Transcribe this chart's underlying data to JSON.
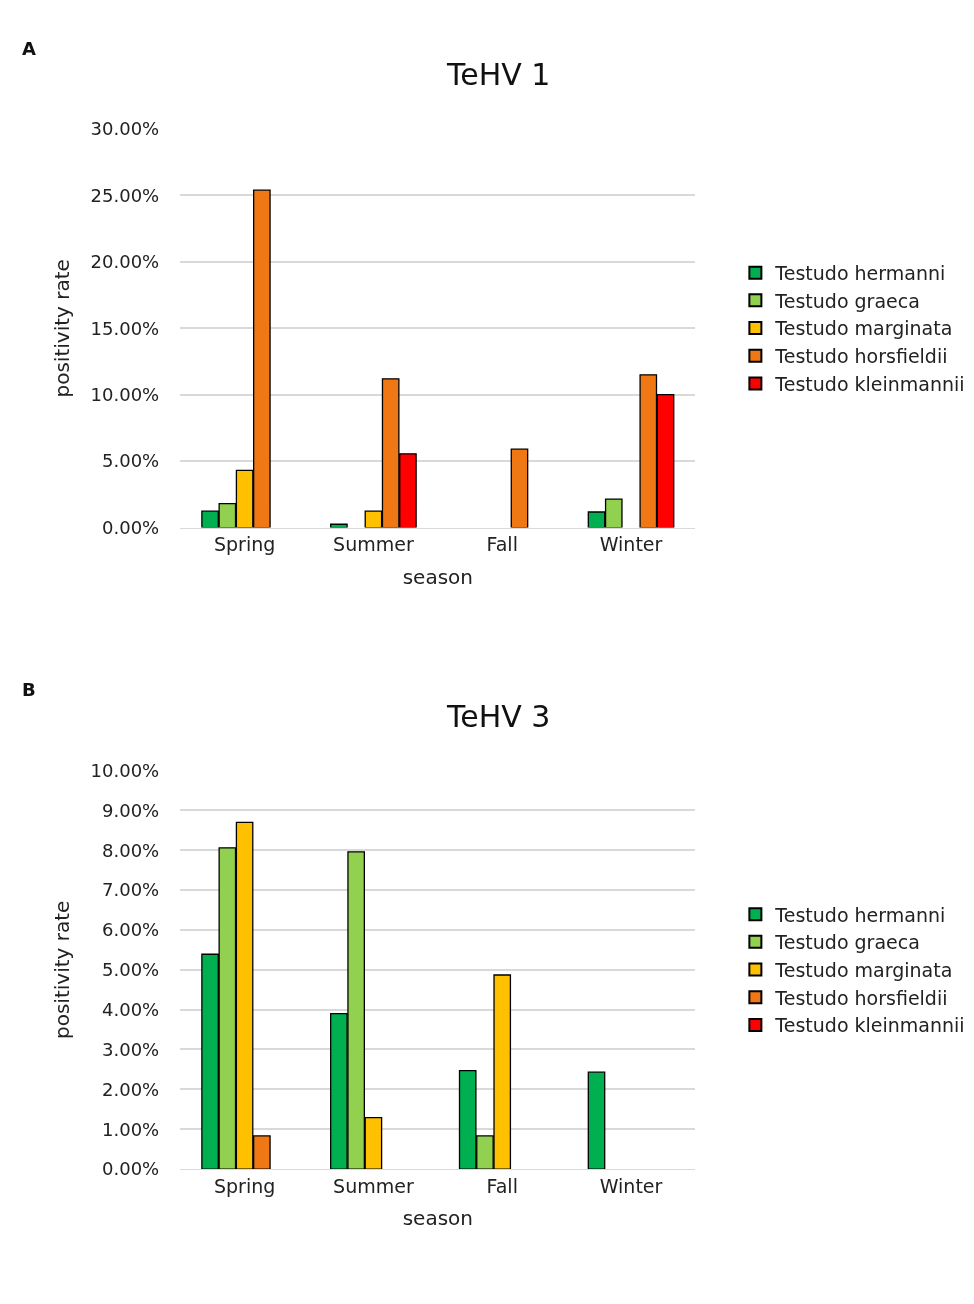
{
  "chart_data": [
    {
      "type": "bar",
      "title": "TeHV 1",
      "xlabel": "season",
      "ylabel": "positivity rate",
      "annotations": [
        "A"
      ],
      "categories": [
        "Spring",
        "Summer",
        "Fall",
        "Winter"
      ],
      "series": [
        {
          "name": "Testudo hermanni",
          "color": "#00b050",
          "values": [
            1.23,
            0.25,
            null,
            1.17
          ]
        },
        {
          "name": "Testudo graeca",
          "color": "#92d050",
          "values": [
            1.8,
            null,
            null,
            2.14
          ]
        },
        {
          "name": "Testudo marginata",
          "color": "#ffc000",
          "values": [
            4.3,
            1.23,
            null,
            null
          ]
        },
        {
          "name": "Testudo horsfieldii",
          "color": "#f07814",
          "values": [
            25.4,
            11.2,
            5.9,
            11.5
          ]
        },
        {
          "name": "Testudo kleinmannii",
          "color": "#ff0000",
          "values": [
            null,
            5.55,
            null,
            10.0
          ]
        }
      ],
      "ylim": [
        0,
        30
      ],
      "yticks": [
        {
          "value": 0,
          "label": "0.00%"
        },
        {
          "value": 5,
          "label": "5.00%"
        },
        {
          "value": 10,
          "label": "10.00%"
        },
        {
          "value": 15,
          "label": "15.00%"
        },
        {
          "value": 20,
          "label": "20.00%"
        },
        {
          "value": 25,
          "label": "25.00%"
        },
        {
          "value": 30,
          "label": "30.00%"
        }
      ],
      "grid": "y",
      "legend": "right"
    },
    {
      "type": "bar",
      "title": "TeHV 3",
      "xlabel": "season",
      "ylabel": "positivity rate",
      "annotations": [
        "B"
      ],
      "categories": [
        "Spring",
        "Summer",
        "Fall",
        "Winter"
      ],
      "series": [
        {
          "name": "Testudo hermanni",
          "color": "#00b050",
          "values": [
            5.39,
            3.9,
            2.47,
            2.43
          ]
        },
        {
          "name": "Testudo graeca",
          "color": "#92d050",
          "values": [
            8.06,
            7.96,
            0.83,
            null
          ]
        },
        {
          "name": "Testudo marginata",
          "color": "#ffc000",
          "values": [
            8.7,
            1.29,
            4.87,
            null
          ]
        },
        {
          "name": "Testudo horsfieldii",
          "color": "#f07814",
          "values": [
            0.83,
            null,
            null,
            null
          ]
        },
        {
          "name": "Testudo kleinmannii",
          "color": "#ff0000",
          "values": [
            null,
            null,
            null,
            null
          ]
        }
      ],
      "ylim": [
        0,
        10
      ],
      "yticks": [
        {
          "value": 0,
          "label": "0.00%"
        },
        {
          "value": 1,
          "label": "1.00%"
        },
        {
          "value": 2,
          "label": "2.00%"
        },
        {
          "value": 3,
          "label": "3.00%"
        },
        {
          "value": 4,
          "label": "4.00%"
        },
        {
          "value": 5,
          "label": "5.00%"
        },
        {
          "value": 6,
          "label": "6.00%"
        },
        {
          "value": 7,
          "label": "7.00%"
        },
        {
          "value": 8,
          "label": "8.00%"
        },
        {
          "value": 9,
          "label": "9.00%"
        },
        {
          "value": 10,
          "label": "10.00%"
        }
      ],
      "grid": "y",
      "legend": "right"
    }
  ]
}
